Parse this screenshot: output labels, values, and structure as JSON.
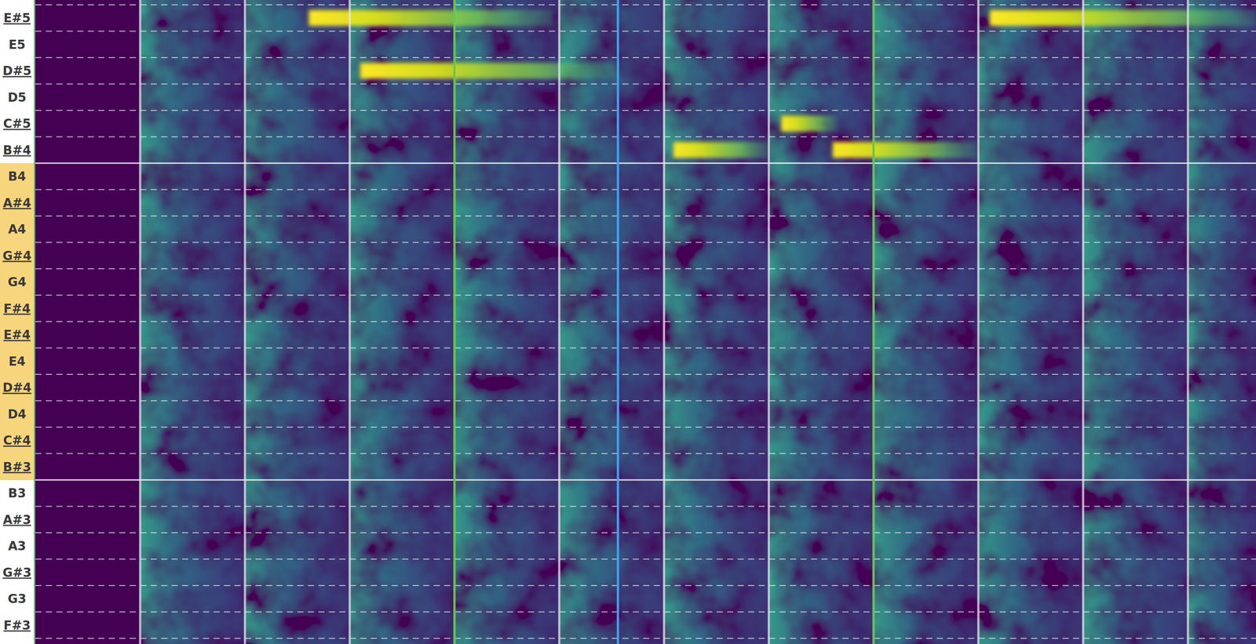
{
  "chart_data": {
    "type": "spectrogram",
    "rows": [
      "E#5",
      "E5",
      "D#5",
      "D5",
      "C#5",
      "B#4",
      "B4",
      "A#4",
      "A4",
      "G#4",
      "G4",
      "F#4",
      "E#4",
      "E4",
      "D#4",
      "D4",
      "C#4",
      "B#3",
      "B3",
      "A#3",
      "A3",
      "G#3",
      "G3",
      "F#3"
    ],
    "highlighted": [
      "B4",
      "A#4",
      "A4",
      "G#4",
      "G4",
      "F#4",
      "E#4",
      "E4",
      "D#4",
      "D4",
      "C#4",
      "B#3"
    ],
    "xlim": [
      0,
      11.65
    ],
    "xticks": [
      1,
      2,
      3,
      4,
      5,
      6,
      7,
      8,
      9,
      10,
      11
    ],
    "measure_lines": [
      4,
      8
    ],
    "playhead": 5.56,
    "tick_labels": "y",
    "grid": true,
    "notes": [
      {
        "pitch": "E#5",
        "start": 2.61,
        "end": 4.94
      },
      {
        "pitch": "D#5",
        "start": 3.1,
        "end": 5.55
      },
      {
        "pitch": "B#4",
        "start": 6.09,
        "end": 7.0
      },
      {
        "pitch": "C#5",
        "start": 7.12,
        "end": 7.65
      },
      {
        "pitch": "B#4",
        "start": 7.61,
        "end": 8.99
      },
      {
        "pitch": "E#5",
        "start": 9.11,
        "end": 11.65
      }
    ]
  }
}
